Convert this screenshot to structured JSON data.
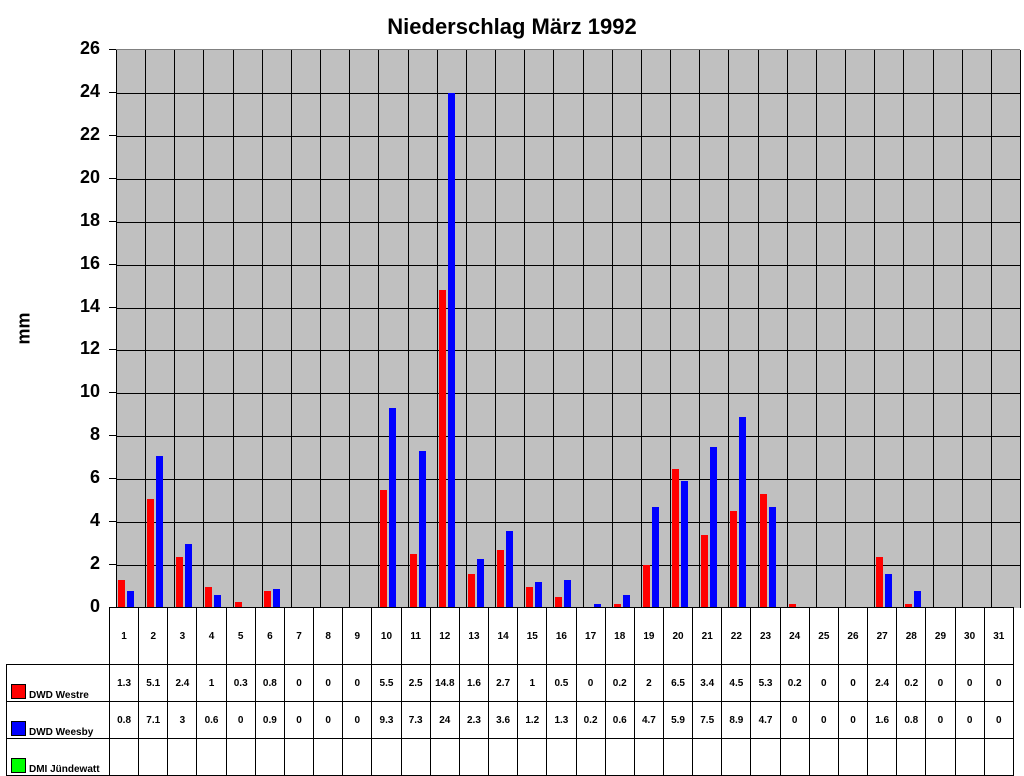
{
  "chart_data": {
    "type": "bar",
    "title": "Niederschlag März 1992",
    "xlabel": "",
    "ylabel": "mm",
    "ylim": [
      0,
      26
    ],
    "yticks": [
      0,
      2,
      4,
      6,
      8,
      10,
      12,
      14,
      16,
      18,
      20,
      22,
      24,
      26
    ],
    "grid": true,
    "legend_position": "data-table",
    "categories": [
      "1",
      "2",
      "3",
      "4",
      "5",
      "6",
      "7",
      "8",
      "9",
      "10",
      "11",
      "12",
      "13",
      "14",
      "15",
      "16",
      "17",
      "18",
      "19",
      "20",
      "21",
      "22",
      "23",
      "24",
      "25",
      "26",
      "27",
      "28",
      "29",
      "30",
      "31"
    ],
    "series": [
      {
        "name": "DWD Westre",
        "color": "#ff0000",
        "values": [
          1.3,
          5.1,
          2.4,
          1,
          0.3,
          0.8,
          0,
          0,
          0,
          5.5,
          2.5,
          14.8,
          1.6,
          2.7,
          1,
          0.5,
          0,
          0.2,
          2,
          6.5,
          3.4,
          4.5,
          5.3,
          0.2,
          0,
          0,
          2.4,
          0.2,
          0,
          0,
          0
        ]
      },
      {
        "name": "DWD Weesby",
        "color": "#0000ff",
        "values": [
          0.8,
          7.1,
          3,
          0.6,
          0,
          0.9,
          0,
          0,
          0,
          9.3,
          7.3,
          24,
          2.3,
          3.6,
          1.2,
          1.3,
          0.2,
          0.6,
          4.7,
          5.9,
          7.5,
          8.9,
          4.7,
          0,
          0,
          0,
          1.6,
          0.8,
          0,
          0,
          0
        ]
      },
      {
        "name": "DMI Jündewatt",
        "color": "#00ff00",
        "values": [
          null,
          null,
          null,
          null,
          null,
          null,
          null,
          null,
          null,
          null,
          null,
          null,
          null,
          null,
          null,
          null,
          null,
          null,
          null,
          null,
          null,
          null,
          null,
          null,
          null,
          null,
          null,
          null,
          null,
          null,
          null
        ]
      }
    ]
  }
}
